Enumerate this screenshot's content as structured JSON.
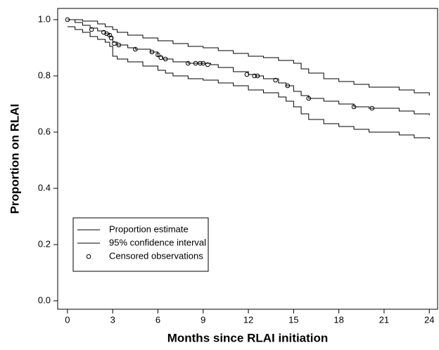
{
  "chart_data": {
    "type": "step",
    "x_label": "Months since RLAI initiation",
    "y_label": "Proportion on RLAI",
    "xlim": [
      -0.65,
      24.55
    ],
    "ylim": [
      -0.03,
      1.04
    ],
    "xticks": [
      0,
      3,
      6,
      9,
      12,
      15,
      18,
      21,
      24
    ],
    "yticks": [
      {
        "value": 0,
        "label": "0.0"
      },
      0.2,
      0.4,
      0.6,
      0.8,
      {
        "value": 1,
        "label": "1.0"
      }
    ],
    "legend": "lower-left",
    "series": [
      {
        "name": "Proportion estimate",
        "color": "#000000",
        "kind": "step",
        "x": [
          0,
          0.5,
          1,
          1.5,
          2,
          2.5,
          2.8,
          3,
          3.3,
          4,
          4.5,
          5.5,
          6,
          6.3,
          7,
          8,
          9.5,
          10,
          11,
          12,
          12.5,
          13,
          14,
          14.5,
          15,
          15.5,
          16,
          17,
          18,
          19,
          20,
          22,
          23,
          24
        ],
        "values": [
          1.0,
          0.99,
          0.98,
          0.97,
          0.96,
          0.95,
          0.94,
          0.92,
          0.91,
          0.9,
          0.895,
          0.885,
          0.87,
          0.86,
          0.85,
          0.845,
          0.84,
          0.83,
          0.815,
          0.805,
          0.8,
          0.79,
          0.775,
          0.765,
          0.745,
          0.73,
          0.72,
          0.71,
          0.7,
          0.69,
          0.685,
          0.675,
          0.665,
          0.66
        ]
      },
      {
        "name": "95% confidence interval",
        "color": "#000000",
        "kind": "band",
        "upper": {
          "x": [
            0,
            1,
            2,
            2.5,
            3,
            3.3,
            4,
            5,
            6,
            7,
            8,
            9,
            10,
            11,
            12,
            13,
            14,
            15,
            15.5,
            16,
            17,
            18,
            19,
            20,
            22,
            23,
            24
          ],
          "values": [
            1.0,
            0.995,
            0.985,
            0.975,
            0.965,
            0.955,
            0.945,
            0.935,
            0.925,
            0.915,
            0.905,
            0.9,
            0.89,
            0.88,
            0.87,
            0.865,
            0.855,
            0.845,
            0.825,
            0.81,
            0.79,
            0.78,
            0.77,
            0.76,
            0.75,
            0.74,
            0.73
          ]
        },
        "lower": {
          "x": [
            0,
            0.5,
            1,
            1.5,
            2,
            2.5,
            2.8,
            3,
            3.3,
            4,
            5,
            6,
            6.5,
            7,
            8,
            9,
            10,
            11,
            12,
            13,
            14,
            14.5,
            15,
            15.5,
            16,
            17,
            18,
            19,
            20,
            22,
            23,
            24
          ],
          "values": [
            0.975,
            0.965,
            0.955,
            0.94,
            0.93,
            0.92,
            0.905,
            0.87,
            0.86,
            0.85,
            0.835,
            0.82,
            0.81,
            0.8,
            0.79,
            0.785,
            0.775,
            0.765,
            0.75,
            0.74,
            0.725,
            0.71,
            0.69,
            0.665,
            0.645,
            0.63,
            0.62,
            0.61,
            0.6,
            0.59,
            0.58,
            0.575
          ]
        }
      },
      {
        "name": "Censored observations",
        "color": "#000000",
        "kind": "points",
        "x": [
          0,
          1.6,
          2.4,
          2.6,
          2.8,
          2.9,
          3.1,
          3.4,
          4.5,
          5.6,
          6.0,
          6.2,
          6.5,
          8.0,
          8.5,
          8.8,
          9.0,
          9.3,
          11.9,
          12.4,
          12.6,
          13.8,
          14.6,
          16.0,
          19.0,
          20.2
        ],
        "values": [
          1.0,
          0.965,
          0.955,
          0.95,
          0.945,
          0.935,
          0.915,
          0.91,
          0.895,
          0.885,
          0.875,
          0.865,
          0.86,
          0.845,
          0.845,
          0.845,
          0.845,
          0.84,
          0.805,
          0.8,
          0.8,
          0.785,
          0.765,
          0.72,
          0.69,
          0.685
        ]
      }
    ]
  }
}
